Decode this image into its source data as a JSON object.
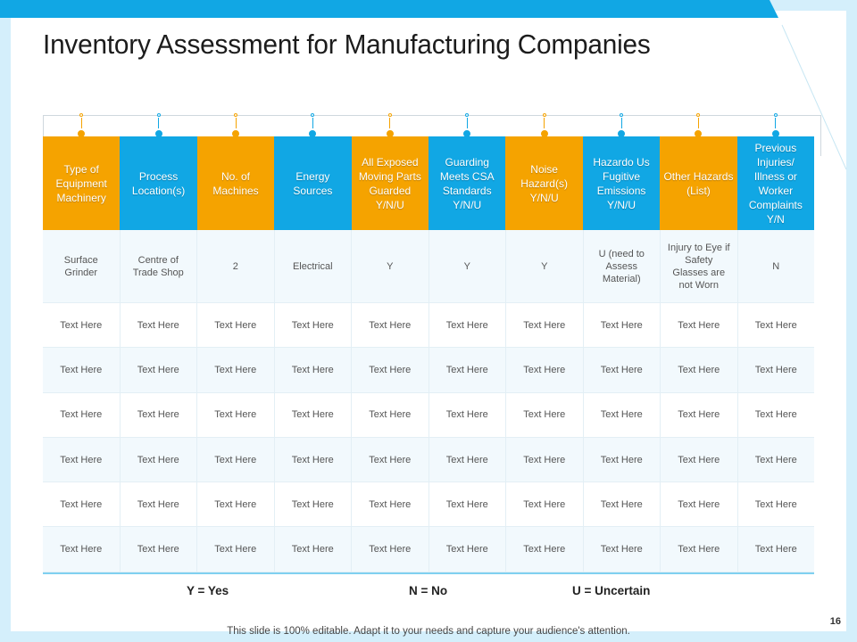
{
  "slide": {
    "title": "Inventory Assessment for Manufacturing Companies",
    "page_number": "16",
    "footer_text": "This slide is 100% editable. Adapt it to your needs and capture your audience's attention."
  },
  "colors": {
    "orange": "#f5a300",
    "blue": "#11a7e4",
    "background": "#d4effb"
  },
  "table": {
    "headers": [
      {
        "label": "Type of Equipment Machinery",
        "color": "orange"
      },
      {
        "label": "Process Location(s)",
        "color": "blue"
      },
      {
        "label": "No. of Machines",
        "color": "orange"
      },
      {
        "label": "Energy Sources",
        "color": "blue"
      },
      {
        "label": "All Exposed Moving Parts Guarded Y/N/U",
        "color": "orange"
      },
      {
        "label": "Guarding Meets CSA Standards Y/N/U",
        "color": "blue"
      },
      {
        "label": "Noise Hazard(s) Y/N/U",
        "color": "orange"
      },
      {
        "label": "Hazardo Us Fugitive Emissions Y/N/U",
        "color": "blue"
      },
      {
        "label": "Other Hazards (List)",
        "color": "orange"
      },
      {
        "label": "Previous Injuries/ Illness or Worker Complaints Y/N",
        "color": "blue"
      }
    ],
    "rows": [
      [
        "Surface Grinder",
        "Centre of Trade Shop",
        "2",
        "Electrical",
        "Y",
        "Y",
        "Y",
        "U (need to Assess Material)",
        "Injury to Eye if Safety Glasses are not Worn",
        "N"
      ],
      [
        "Text Here",
        "Text Here",
        "Text Here",
        "Text Here",
        "Text Here",
        "Text Here",
        "Text Here",
        "Text Here",
        "Text Here",
        "Text Here"
      ],
      [
        "Text Here",
        "Text Here",
        "Text Here",
        "Text Here",
        "Text Here",
        "Text Here",
        "Text Here",
        "Text Here",
        "Text Here",
        "Text Here"
      ],
      [
        "Text Here",
        "Text Here",
        "Text Here",
        "Text Here",
        "Text Here",
        "Text Here",
        "Text Here",
        "Text Here",
        "Text Here",
        "Text Here"
      ],
      [
        "Text Here",
        "Text Here",
        "Text Here",
        "Text Here",
        "Text Here",
        "Text Here",
        "Text Here",
        "Text Here",
        "Text Here",
        "Text Here"
      ],
      [
        "Text Here",
        "Text Here",
        "Text Here",
        "Text Here",
        "Text Here",
        "Text Here",
        "Text Here",
        "Text Here",
        "Text Here",
        "Text Here"
      ],
      [
        "Text Here",
        "Text Here",
        "Text Here",
        "Text Here",
        "Text Here",
        "Text Here",
        "Text Here",
        "Text Here",
        "Text Here",
        "Text Here"
      ]
    ]
  },
  "legend": {
    "yes": "Y = Yes",
    "no": "N = No",
    "uncertain": "U = Uncertain"
  }
}
